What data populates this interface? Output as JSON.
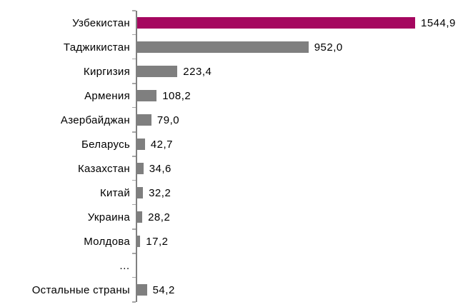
{
  "chart_data": {
    "type": "bar",
    "orientation": "horizontal",
    "categories": [
      "Узбекистан",
      "Таджикистан",
      "Киргизия",
      "Армения",
      "Азербайджан",
      "Беларусь",
      "Казахстан",
      "Китай",
      "Украина",
      "Молдова",
      "…",
      "Остальные страны"
    ],
    "values": [
      1544.9,
      952.0,
      223.4,
      108.2,
      79.0,
      42.7,
      34.6,
      32.2,
      28.2,
      17.2,
      null,
      54.2
    ],
    "value_labels": [
      "1544,9",
      "952,0",
      "223,4",
      "108,2",
      "79,0",
      "42,7",
      "34,6",
      "32,2",
      "28,2",
      "17,2",
      "",
      "54,2"
    ],
    "highlight_index": 0,
    "xlim": [
      0,
      1600
    ],
    "grid": false,
    "legend": null,
    "colors": {
      "highlight": "#A5075F",
      "bar": "#7F7F7F",
      "axis": "#808080",
      "tick": "#A6A6A6",
      "text": "#000000",
      "background": "#FFFFFF"
    }
  }
}
